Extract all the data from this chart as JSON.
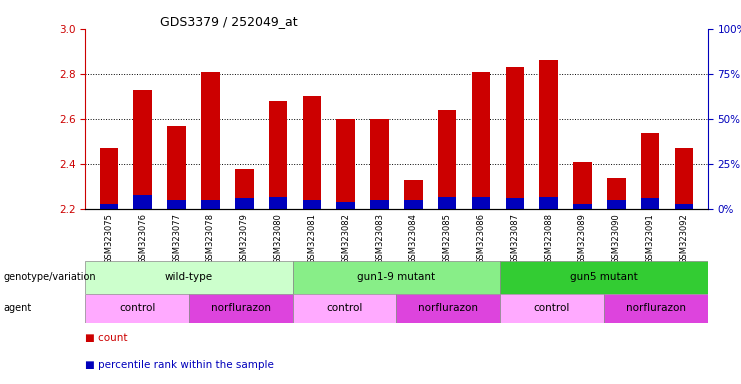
{
  "title": "GDS3379 / 252049_at",
  "samples": [
    "GSM323075",
    "GSM323076",
    "GSM323077",
    "GSM323078",
    "GSM323079",
    "GSM323080",
    "GSM323081",
    "GSM323082",
    "GSM323083",
    "GSM323084",
    "GSM323085",
    "GSM323086",
    "GSM323087",
    "GSM323088",
    "GSM323089",
    "GSM323090",
    "GSM323091",
    "GSM323092"
  ],
  "counts": [
    2.47,
    2.73,
    2.57,
    2.81,
    2.38,
    2.68,
    2.7,
    2.6,
    2.6,
    2.33,
    2.64,
    2.81,
    2.83,
    2.86,
    2.41,
    2.34,
    2.54,
    2.47
  ],
  "percentile_ranks": [
    3,
    8,
    5,
    5,
    6,
    7,
    5,
    4,
    5,
    5,
    7,
    7,
    6,
    7,
    3,
    5,
    6,
    3
  ],
  "ylim_left": [
    2.2,
    3.0
  ],
  "ylim_right": [
    0,
    100
  ],
  "yticks_left": [
    2.2,
    2.4,
    2.6,
    2.8,
    3.0
  ],
  "yticks_right": [
    0,
    25,
    50,
    75,
    100
  ],
  "grid_lines": [
    2.4,
    2.6,
    2.8
  ],
  "bar_color_red": "#CC0000",
  "bar_color_blue": "#0000BB",
  "base_value": 2.2,
  "genotype_groups": [
    {
      "label": "wild-type",
      "start": 0,
      "end": 5,
      "color": "#ccffcc"
    },
    {
      "label": "gun1-9 mutant",
      "start": 6,
      "end": 11,
      "color": "#88ee88"
    },
    {
      "label": "gun5 mutant",
      "start": 12,
      "end": 17,
      "color": "#33cc33"
    }
  ],
  "agent_groups": [
    {
      "label": "control",
      "start": 0,
      "end": 2,
      "color": "#ffaaff"
    },
    {
      "label": "norflurazon",
      "start": 3,
      "end": 5,
      "color": "#dd44dd"
    },
    {
      "label": "control",
      "start": 6,
      "end": 8,
      "color": "#ffaaff"
    },
    {
      "label": "norflurazon",
      "start": 9,
      "end": 11,
      "color": "#dd44dd"
    },
    {
      "label": "control",
      "start": 12,
      "end": 14,
      "color": "#ffaaff"
    },
    {
      "label": "norflurazon",
      "start": 15,
      "end": 17,
      "color": "#dd44dd"
    }
  ],
  "tick_color_left": "#CC0000",
  "tick_color_right": "#0000BB",
  "bg_xtick_color": "#dddddd"
}
